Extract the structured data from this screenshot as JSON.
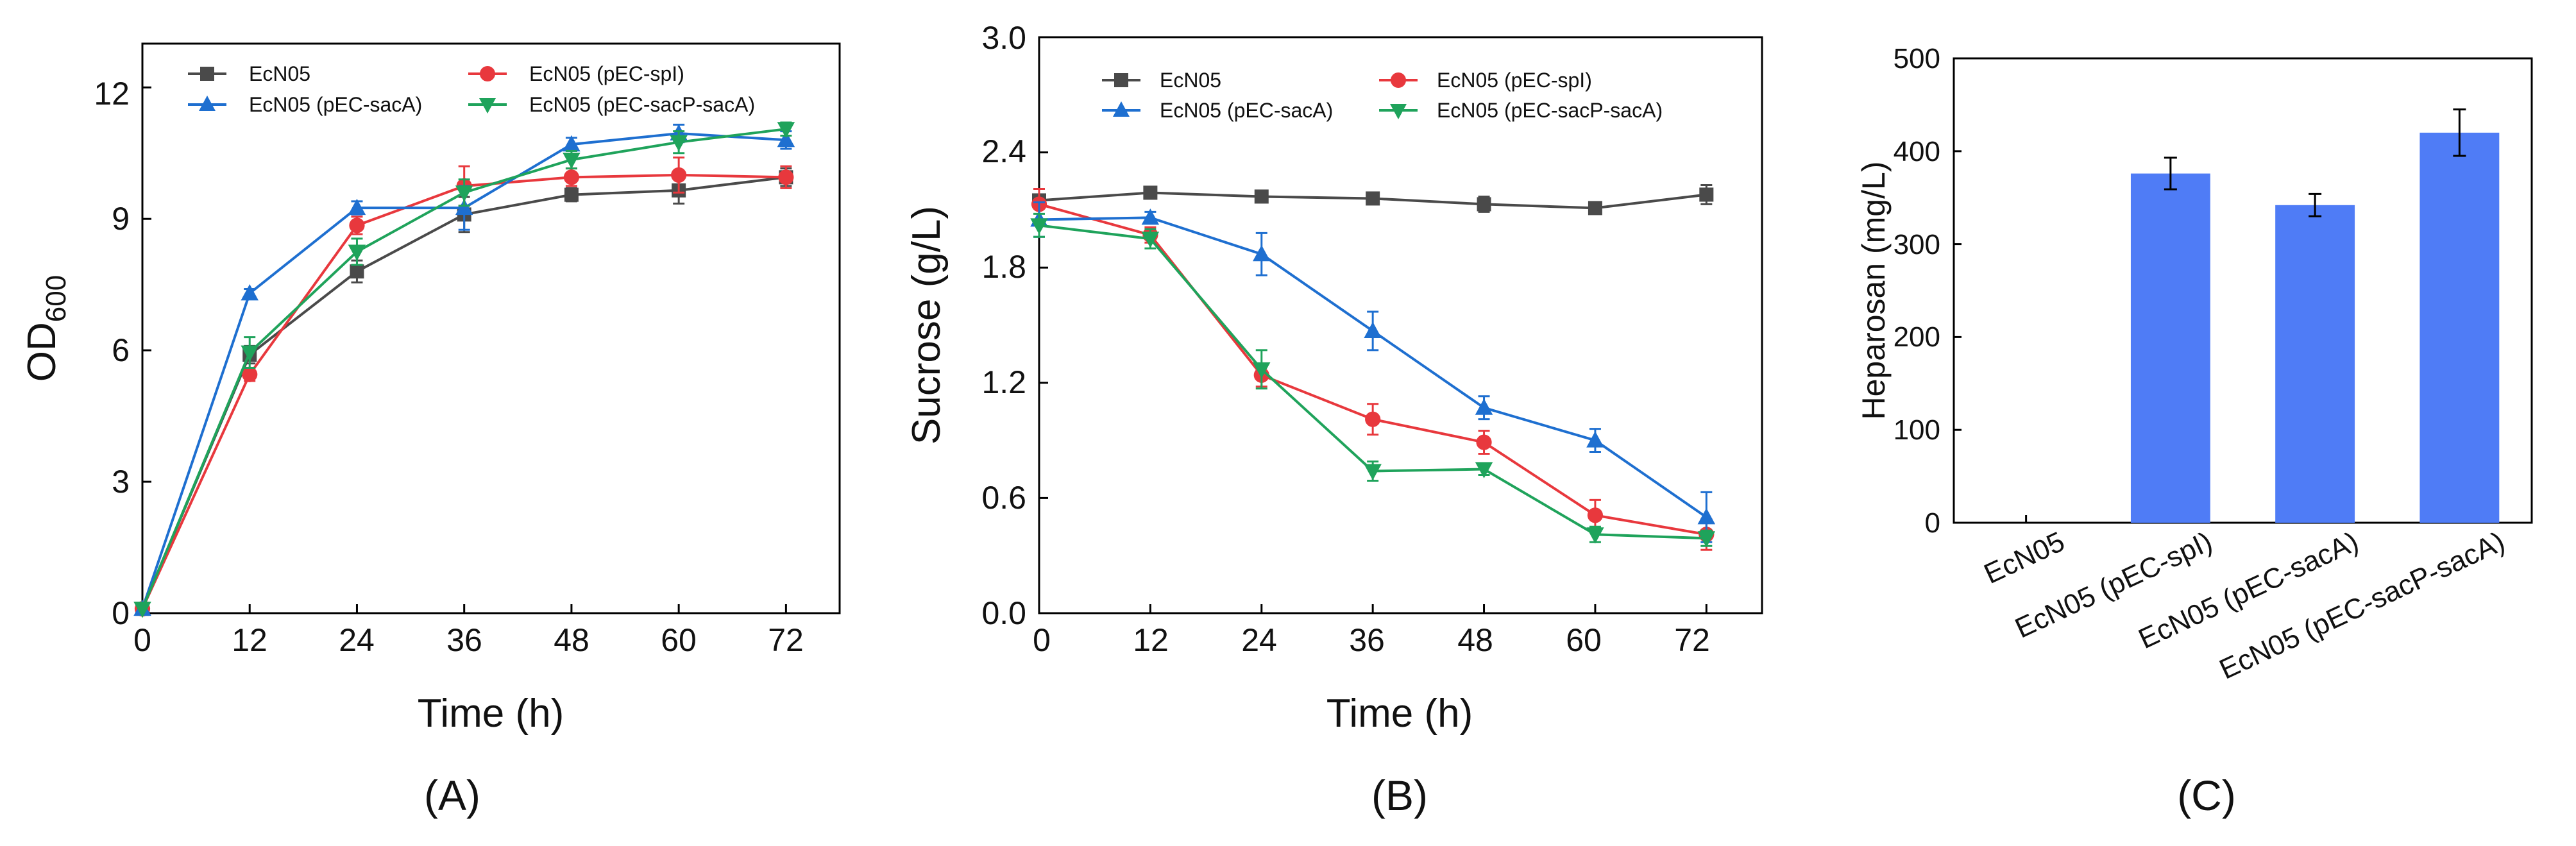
{
  "chart_data": [
    {
      "type": "line",
      "panel_label": "(A)",
      "xlabel": "Time (h)",
      "ylabel": "OD",
      "ylabel_subscript": "600",
      "x": [
        0,
        12,
        24,
        36,
        48,
        60,
        72
      ],
      "xlim": [
        0,
        78
      ],
      "ylim": [
        0,
        13
      ],
      "xticks": [
        0,
        12,
        24,
        36,
        48,
        60,
        72
      ],
      "yticks": [
        0,
        3,
        6,
        9,
        12
      ],
      "legend_position": "top-left",
      "series": [
        {
          "name": "EcN05",
          "color": "#4a4a4a",
          "marker": "square",
          "values": [
            0.1,
            5.9,
            7.8,
            9.1,
            9.55,
            9.65,
            9.95
          ],
          "errors": [
            0,
            0.2,
            0.25,
            0.4,
            0.15,
            0.3,
            0.2
          ]
        },
        {
          "name": "EcN05 (pEC-spI)",
          "color": "#e8383d",
          "marker": "circle",
          "values": [
            0.1,
            5.45,
            8.85,
            9.75,
            9.95,
            10.0,
            9.95
          ],
          "errors": [
            0,
            0.15,
            0.2,
            0.45,
            0.2,
            0.4,
            0.25
          ]
        },
        {
          "name": "EcN05 (pEC-sacA)",
          "color": "#1e6fd0",
          "marker": "triangle-up",
          "values": [
            0.1,
            7.3,
            9.25,
            9.25,
            10.7,
            10.95,
            10.8
          ],
          "errors": [
            0,
            0.1,
            0.15,
            0.5,
            0.15,
            0.2,
            0.2
          ]
        },
        {
          "name": "EcN05 (pEC-sacP-sacA)",
          "color": "#1fa35b",
          "marker": "triangle-down",
          "values": [
            0.1,
            5.95,
            8.25,
            9.6,
            10.35,
            10.75,
            11.05
          ],
          "errors": [
            0,
            0.35,
            0.3,
            0.3,
            0.2,
            0.25,
            0.15
          ]
        }
      ]
    },
    {
      "type": "line",
      "panel_label": "(B)",
      "xlabel": "Time (h)",
      "ylabel": "Sucrose (g/L)",
      "x": [
        0,
        12,
        24,
        36,
        48,
        60,
        72
      ],
      "xlim": [
        0,
        78
      ],
      "ylim": [
        0,
        3
      ],
      "xticks": [
        0,
        12,
        24,
        36,
        48,
        60,
        72
      ],
      "yticks": [
        "0.0",
        "0.6",
        "1.2",
        "1.8",
        "2.4",
        "3.0"
      ],
      "legend_position": "top",
      "series": [
        {
          "name": "EcN05",
          "color": "#4a4a4a",
          "marker": "square",
          "values": [
            2.15,
            2.19,
            2.17,
            2.16,
            2.13,
            2.11,
            2.18
          ],
          "errors": [
            0.03,
            0.02,
            0.02,
            0.02,
            0.04,
            0.02,
            0.05
          ]
        },
        {
          "name": "EcN05 (pEC-spI)",
          "color": "#e8383d",
          "marker": "circle",
          "values": [
            2.13,
            1.97,
            1.24,
            1.01,
            0.89,
            0.51,
            0.41
          ],
          "errors": [
            0.08,
            0.04,
            0.06,
            0.08,
            0.06,
            0.08,
            0.08
          ]
        },
        {
          "name": "EcN05 (pEC-sacA)",
          "color": "#1e6fd0",
          "marker": "triangle-up",
          "values": [
            2.05,
            2.06,
            1.87,
            1.47,
            1.07,
            0.9,
            0.5
          ],
          "errors": [
            0.09,
            0.03,
            0.11,
            0.1,
            0.06,
            0.06,
            0.13
          ]
        },
        {
          "name": "EcN05 (pEC-sacP-sacA)",
          "color": "#1fa35b",
          "marker": "triangle-down",
          "values": [
            2.02,
            1.95,
            1.27,
            0.74,
            0.75,
            0.41,
            0.39
          ],
          "errors": [
            0.06,
            0.05,
            0.1,
            0.05,
            0.03,
            0.04,
            0.04
          ]
        }
      ]
    },
    {
      "type": "bar",
      "panel_label": "(C)",
      "ylabel": "Heparosan (mg/L)",
      "categories": [
        "EcN05",
        "EcN05 (pEC-spI)",
        "EcN05 (pEC-sacA)",
        "EcN05 (pEC-sacP-sacA)"
      ],
      "values": [
        0,
        376,
        342,
        420
      ],
      "errors": [
        0,
        17,
        12,
        25
      ],
      "ylim": [
        0,
        500
      ],
      "yticks": [
        0,
        100,
        200,
        300,
        400,
        500
      ],
      "bar_color": "#4f7cf6"
    }
  ]
}
